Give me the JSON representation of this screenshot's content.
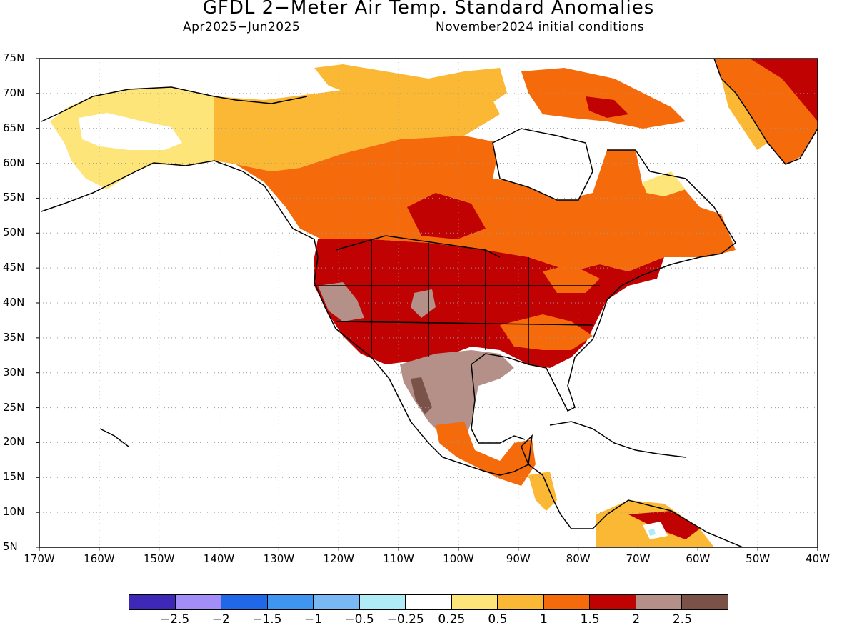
{
  "title": "GFDL 2−Meter Air Temp. Standard Anomalies",
  "period": "Apr2025−Jun2025",
  "initial_conditions": "November2024 initial conditions",
  "lat_labels": [
    "75N",
    "70N",
    "65N",
    "60N",
    "55N",
    "50N",
    "45N",
    "40N",
    "35N",
    "30N",
    "25N",
    "20N",
    "15N",
    "10N",
    "5N"
  ],
  "lon_labels": [
    "170W",
    "160W",
    "150W",
    "140W",
    "130W",
    "120W",
    "110W",
    "100W",
    "90W",
    "80W",
    "70W",
    "60W",
    "50W",
    "40W"
  ],
  "colorbar": {
    "colors": [
      "#3d28b8",
      "#a38ef7",
      "#2068e8",
      "#3f96f0",
      "#78b8f4",
      "#b0ecf8",
      "#ffffff",
      "#fde57a",
      "#fbb834",
      "#f56a0a",
      "#c00202",
      "#b59088",
      "#7a5248"
    ],
    "labels": [
      "−2.5",
      "−2",
      "−1.5",
      "−1",
      "−0.5",
      "−0.25",
      "0.25",
      "0.5",
      "1",
      "1.5",
      "2",
      "2.5"
    ]
  }
}
